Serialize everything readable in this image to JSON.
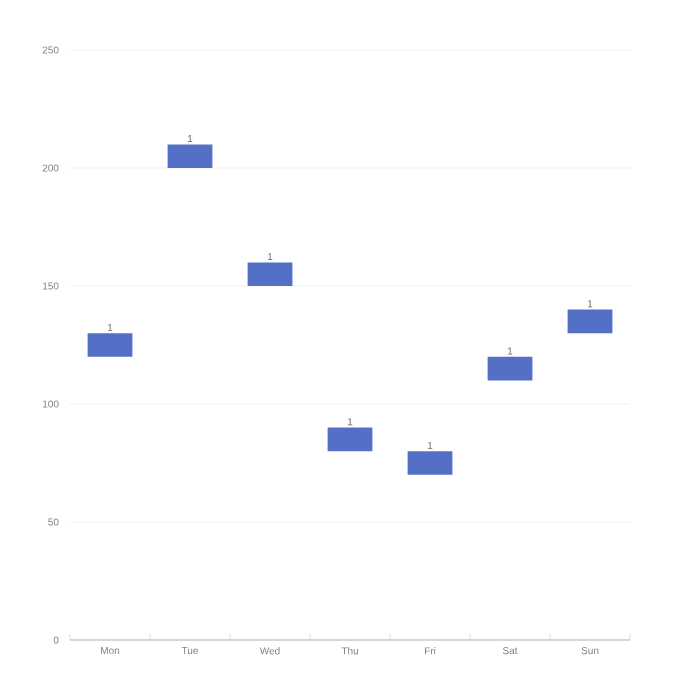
{
  "chart_data": {
    "type": "bar",
    "categories": [
      "Mon",
      "Tue",
      "Wed",
      "Thu",
      "Fri",
      "Sat",
      "Sun"
    ],
    "base": [
      120,
      200,
      150,
      80,
      70,
      110,
      130
    ],
    "values": [
      10,
      10,
      10,
      10,
      10,
      10,
      10
    ],
    "annotations": [
      {
        "text": "1",
        "x": "Mon",
        "y": 130
      },
      {
        "text": "1",
        "x": "Tue",
        "y": 210
      },
      {
        "text": "1",
        "x": "Wed",
        "y": 160
      },
      {
        "text": "1",
        "x": "Thu",
        "y": 90
      },
      {
        "text": "1",
        "x": "Fri",
        "y": 80
      },
      {
        "text": "1",
        "x": "Sat",
        "y": 120
      },
      {
        "text": "1",
        "x": "Sun",
        "y": 140
      }
    ],
    "color": "#5470c6",
    "ylim": [
      0,
      250
    ],
    "yticks": [
      0,
      50,
      100,
      150,
      200,
      250
    ],
    "grid": "y"
  }
}
